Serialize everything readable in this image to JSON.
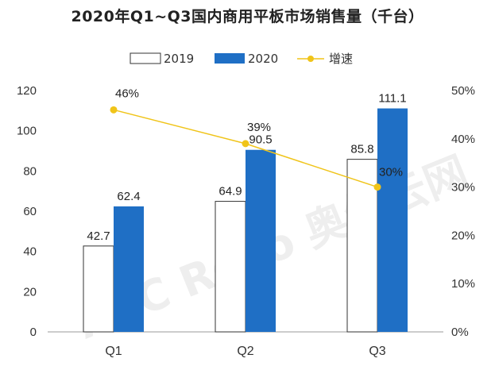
{
  "chart_data": {
    "type": "bar",
    "title": "2020年Q1~Q3国内商用平板市场销售量（千台）",
    "categories": [
      "Q1",
      "Q2",
      "Q3"
    ],
    "series": [
      {
        "name": "2019",
        "kind": "bar",
        "values": [
          42.7,
          64.9,
          85.8
        ],
        "value_labels": [
          "42.7",
          "64.9",
          "85.8"
        ],
        "color": "#ffffff",
        "stroke": "#333333"
      },
      {
        "name": "2020",
        "kind": "bar",
        "values": [
          62.4,
          90.5,
          111.1
        ],
        "value_labels": [
          "62.4",
          "90.5",
          "111.1"
        ],
        "color": "#1f6fc5"
      },
      {
        "name": "增速",
        "kind": "line",
        "axis": "right",
        "values": [
          46,
          39,
          30
        ],
        "value_labels": [
          "46%",
          "39%",
          "30%"
        ],
        "color": "#f0c419"
      }
    ],
    "y_left": {
      "ylim": [
        0,
        120
      ],
      "ticks": [
        "0",
        "20",
        "40",
        "60",
        "80",
        "100",
        "120"
      ]
    },
    "y_right": {
      "ylim": [
        0,
        50
      ],
      "ticks": [
        "0%",
        "10%",
        "20%",
        "30%",
        "40%",
        "50%"
      ]
    },
    "legend_position": "top-center",
    "grid": false,
    "watermark": "AVC Revo 奥维云网"
  }
}
